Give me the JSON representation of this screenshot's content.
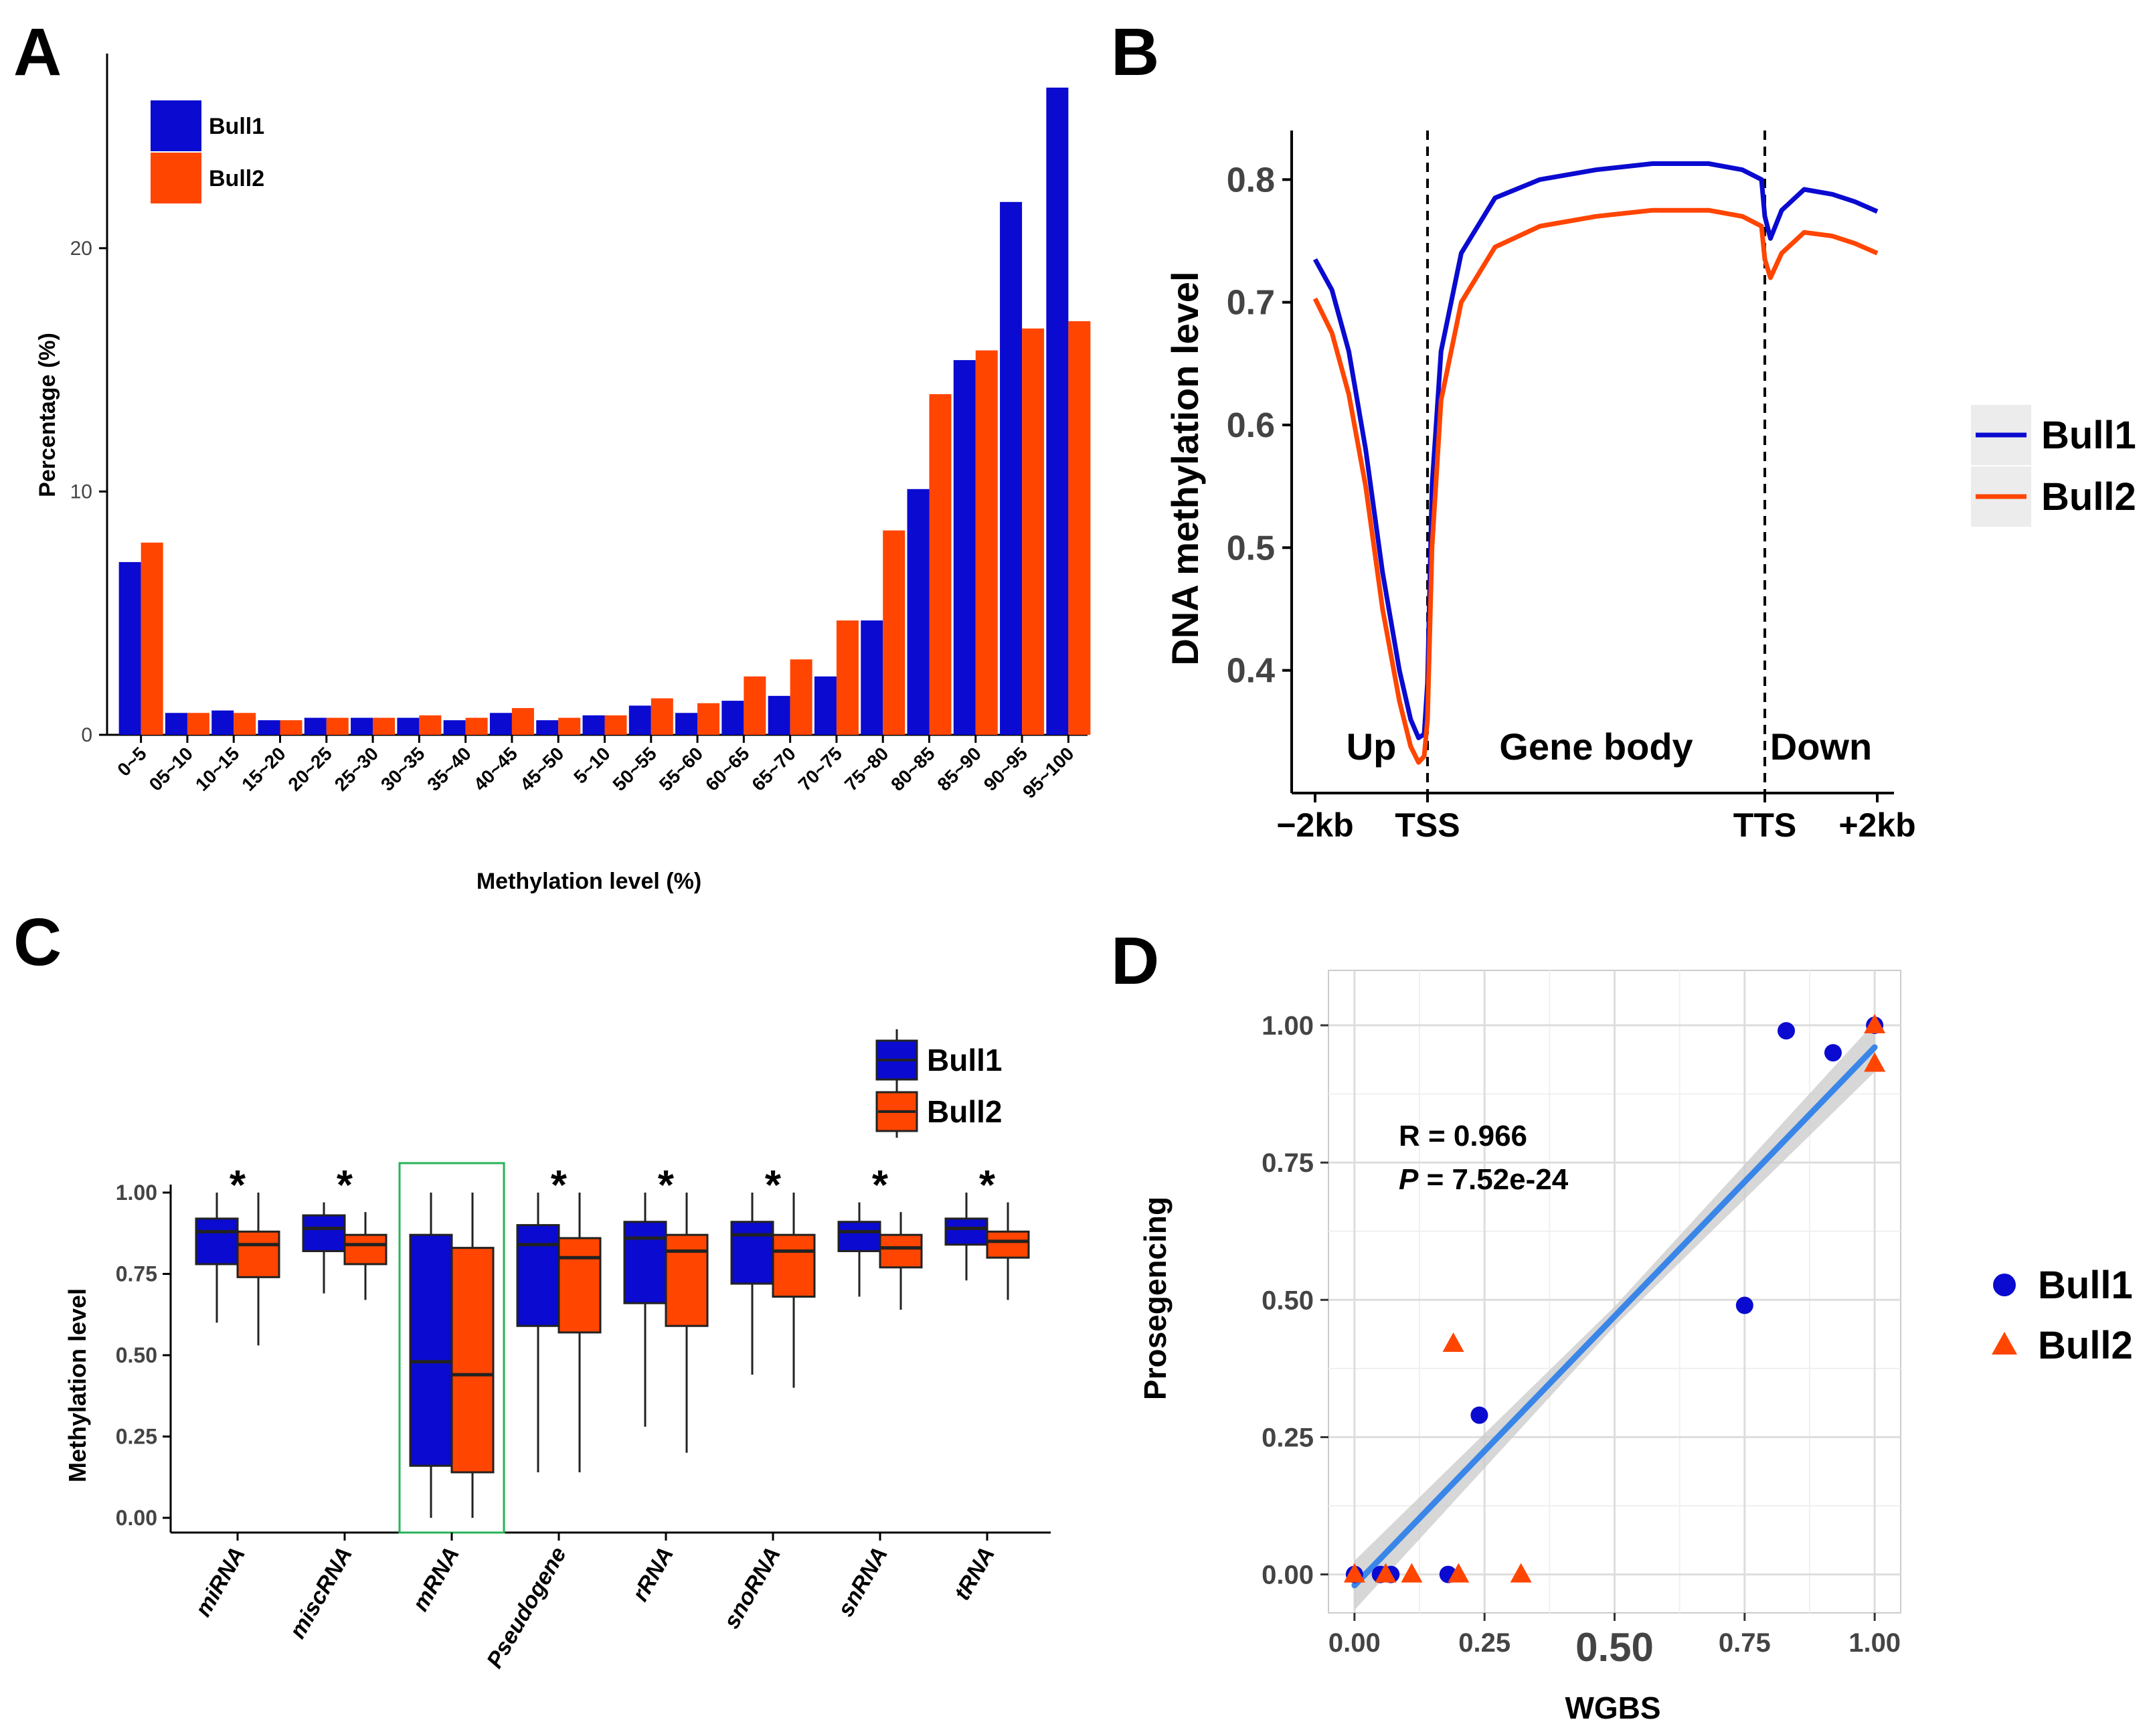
{
  "colors": {
    "bull1": "#0a0ad0",
    "bull2": "#ff4500",
    "fit": "#3a86e8",
    "band": "#c9c9c9",
    "highlight": "#27b35a"
  },
  "chart_data": [
    {
      "panel": "A",
      "type": "bar",
      "xlabel": "Methylation level (%)",
      "ylabel": "Percentage (%)",
      "ylim": [
        0,
        28
      ],
      "yticks": [
        0,
        10,
        20
      ],
      "categories": [
        "0~5",
        "05~10",
        "10~15",
        "15~20",
        "20~25",
        "25~30",
        "30~35",
        "35~40",
        "40~45",
        "45~50",
        "5~10",
        "50~55",
        "55~60",
        "60~65",
        "65~70",
        "70~75",
        "75~80",
        "80~85",
        "85~90",
        "90~95",
        "95~100"
      ],
      "series": [
        {
          "name": "Bull1",
          "values": [
            7.1,
            0.9,
            1.0,
            0.6,
            0.7,
            0.7,
            0.7,
            0.6,
            0.9,
            0.6,
            0.8,
            1.2,
            0.9,
            1.4,
            1.6,
            2.4,
            4.7,
            10.1,
            15.4,
            21.9,
            26.6
          ]
        },
        {
          "name": "Bull2",
          "values": [
            7.9,
            0.9,
            0.9,
            0.6,
            0.7,
            0.7,
            0.8,
            0.7,
            1.1,
            0.7,
            0.8,
            1.5,
            1.3,
            2.4,
            3.1,
            4.7,
            8.4,
            14.0,
            15.8,
            16.7,
            17.0
          ]
        }
      ],
      "legend": "top-left"
    },
    {
      "panel": "B",
      "type": "line",
      "ylabel": "DNA methylation level",
      "ylim": [
        0.3,
        0.84
      ],
      "yticks": [
        0.4,
        0.5,
        0.6,
        0.7,
        0.8
      ],
      "xticks": [
        {
          "label": "−2kb",
          "x": 0
        },
        {
          "label": "TSS",
          "x": 1
        },
        {
          "label": "TTS",
          "x": 4
        },
        {
          "label": "+2kb",
          "x": 5
        }
      ],
      "region_labels": [
        {
          "label": "Up",
          "x": 0.5
        },
        {
          "label": "Gene body",
          "x": 2.5
        },
        {
          "label": "Down",
          "x": 4.5
        }
      ],
      "dividers": [
        1,
        4
      ],
      "series": [
        {
          "name": "Bull1",
          "x": [
            0,
            0.15,
            0.3,
            0.45,
            0.6,
            0.75,
            0.85,
            0.92,
            0.97,
            1.0,
            1.04,
            1.12,
            1.3,
            1.6,
            2.0,
            2.5,
            3.0,
            3.5,
            3.8,
            3.97,
            4.0,
            4.05,
            4.15,
            4.35,
            4.6,
            4.8,
            5.0
          ],
          "y": [
            0.735,
            0.71,
            0.66,
            0.58,
            0.48,
            0.4,
            0.36,
            0.345,
            0.348,
            0.39,
            0.55,
            0.66,
            0.74,
            0.785,
            0.8,
            0.808,
            0.813,
            0.813,
            0.808,
            0.8,
            0.77,
            0.752,
            0.775,
            0.792,
            0.788,
            0.782,
            0.774
          ]
        },
        {
          "name": "Bull2",
          "x": [
            0,
            0.15,
            0.3,
            0.45,
            0.6,
            0.75,
            0.85,
            0.92,
            0.97,
            1.0,
            1.04,
            1.12,
            1.3,
            1.6,
            2.0,
            2.5,
            3.0,
            3.5,
            3.8,
            3.97,
            4.0,
            4.05,
            4.15,
            4.35,
            4.6,
            4.8,
            5.0
          ],
          "y": [
            0.703,
            0.675,
            0.625,
            0.55,
            0.45,
            0.375,
            0.338,
            0.325,
            0.33,
            0.36,
            0.5,
            0.62,
            0.7,
            0.745,
            0.762,
            0.77,
            0.775,
            0.775,
            0.77,
            0.762,
            0.735,
            0.72,
            0.74,
            0.757,
            0.754,
            0.748,
            0.74
          ]
        }
      ],
      "legend": "right"
    },
    {
      "panel": "C",
      "type": "box",
      "ylabel": "Methylation level",
      "ylim": [
        0,
        1.05
      ],
      "yticks": [
        "0.00",
        "0.25",
        "0.50",
        "0.75",
        "1.00"
      ],
      "categories": [
        "miRNA",
        "miscRNA",
        "mRNA",
        "Pseudogene",
        "rRNA",
        "snoRNA",
        "snRNA",
        "tRNA"
      ],
      "significance": [
        "*",
        "*",
        "",
        "*",
        "*",
        "*",
        "*",
        "*"
      ],
      "highlight_category": "mRNA",
      "series": [
        {
          "name": "Bull1",
          "boxes": [
            {
              "min": 0.6,
              "q1": 0.78,
              "median": 0.88,
              "q3": 0.92,
              "max": 1.0
            },
            {
              "min": 0.69,
              "q1": 0.82,
              "median": 0.89,
              "q3": 0.93,
              "max": 0.97
            },
            {
              "min": 0.0,
              "q1": 0.16,
              "median": 0.48,
              "q3": 0.87,
              "max": 1.0
            },
            {
              "min": 0.14,
              "q1": 0.59,
              "median": 0.84,
              "q3": 0.9,
              "max": 1.0
            },
            {
              "min": 0.28,
              "q1": 0.66,
              "median": 0.86,
              "q3": 0.91,
              "max": 1.0
            },
            {
              "min": 0.44,
              "q1": 0.72,
              "median": 0.87,
              "q3": 0.91,
              "max": 1.0
            },
            {
              "min": 0.68,
              "q1": 0.82,
              "median": 0.88,
              "q3": 0.91,
              "max": 0.97
            },
            {
              "min": 0.73,
              "q1": 0.84,
              "median": 0.89,
              "q3": 0.92,
              "max": 1.0
            }
          ]
        },
        {
          "name": "Bull2",
          "boxes": [
            {
              "min": 0.53,
              "q1": 0.74,
              "median": 0.84,
              "q3": 0.88,
              "max": 1.0
            },
            {
              "min": 0.67,
              "q1": 0.78,
              "median": 0.84,
              "q3": 0.87,
              "max": 0.94
            },
            {
              "min": 0.0,
              "q1": 0.14,
              "median": 0.44,
              "q3": 0.83,
              "max": 1.0
            },
            {
              "min": 0.14,
              "q1": 0.57,
              "median": 0.8,
              "q3": 0.86,
              "max": 1.0
            },
            {
              "min": 0.2,
              "q1": 0.59,
              "median": 0.82,
              "q3": 0.87,
              "max": 1.0
            },
            {
              "min": 0.4,
              "q1": 0.68,
              "median": 0.82,
              "q3": 0.87,
              "max": 1.0
            },
            {
              "min": 0.64,
              "q1": 0.77,
              "median": 0.83,
              "q3": 0.87,
              "max": 0.94
            },
            {
              "min": 0.67,
              "q1": 0.8,
              "median": 0.85,
              "q3": 0.88,
              "max": 0.97
            }
          ]
        }
      ],
      "legend": "top-right"
    },
    {
      "panel": "D",
      "type": "scatter",
      "xlabel": "WGBS",
      "ylabel": "Prosegencing",
      "xlim": [
        -0.05,
        1.05
      ],
      "ylim": [
        -0.07,
        1.1
      ],
      "xticks": [
        "0.00",
        "0.25",
        "0.50",
        "0.75",
        "1.00"
      ],
      "yticks": [
        "0.00",
        "0.25",
        "0.50",
        "0.75",
        "1.00"
      ],
      "annotation": {
        "r": "R = 0.966",
        "p_label": "P",
        "p_value": " = 7.52e-24"
      },
      "fit": {
        "x": [
          0,
          1
        ],
        "y": [
          -0.02,
          0.96
        ]
      },
      "series": [
        {
          "name": "Bull1",
          "marker": "circle",
          "x": [
            0.0,
            0.05,
            0.07,
            0.18,
            0.24,
            0.75,
            0.83,
            0.92,
            1.0
          ],
          "y": [
            0.0,
            0.0,
            0.0,
            0.0,
            0.29,
            0.49,
            0.99,
            0.95,
            1.0
          ]
        },
        {
          "name": "Bull2",
          "marker": "triangle",
          "x": [
            0.0,
            0.06,
            0.11,
            0.19,
            0.2,
            0.32,
            1.0,
            1.0
          ],
          "y": [
            0.0,
            0.0,
            0.0,
            0.42,
            0.0,
            0.0,
            1.0,
            0.93
          ]
        }
      ],
      "legend": "right"
    }
  ]
}
